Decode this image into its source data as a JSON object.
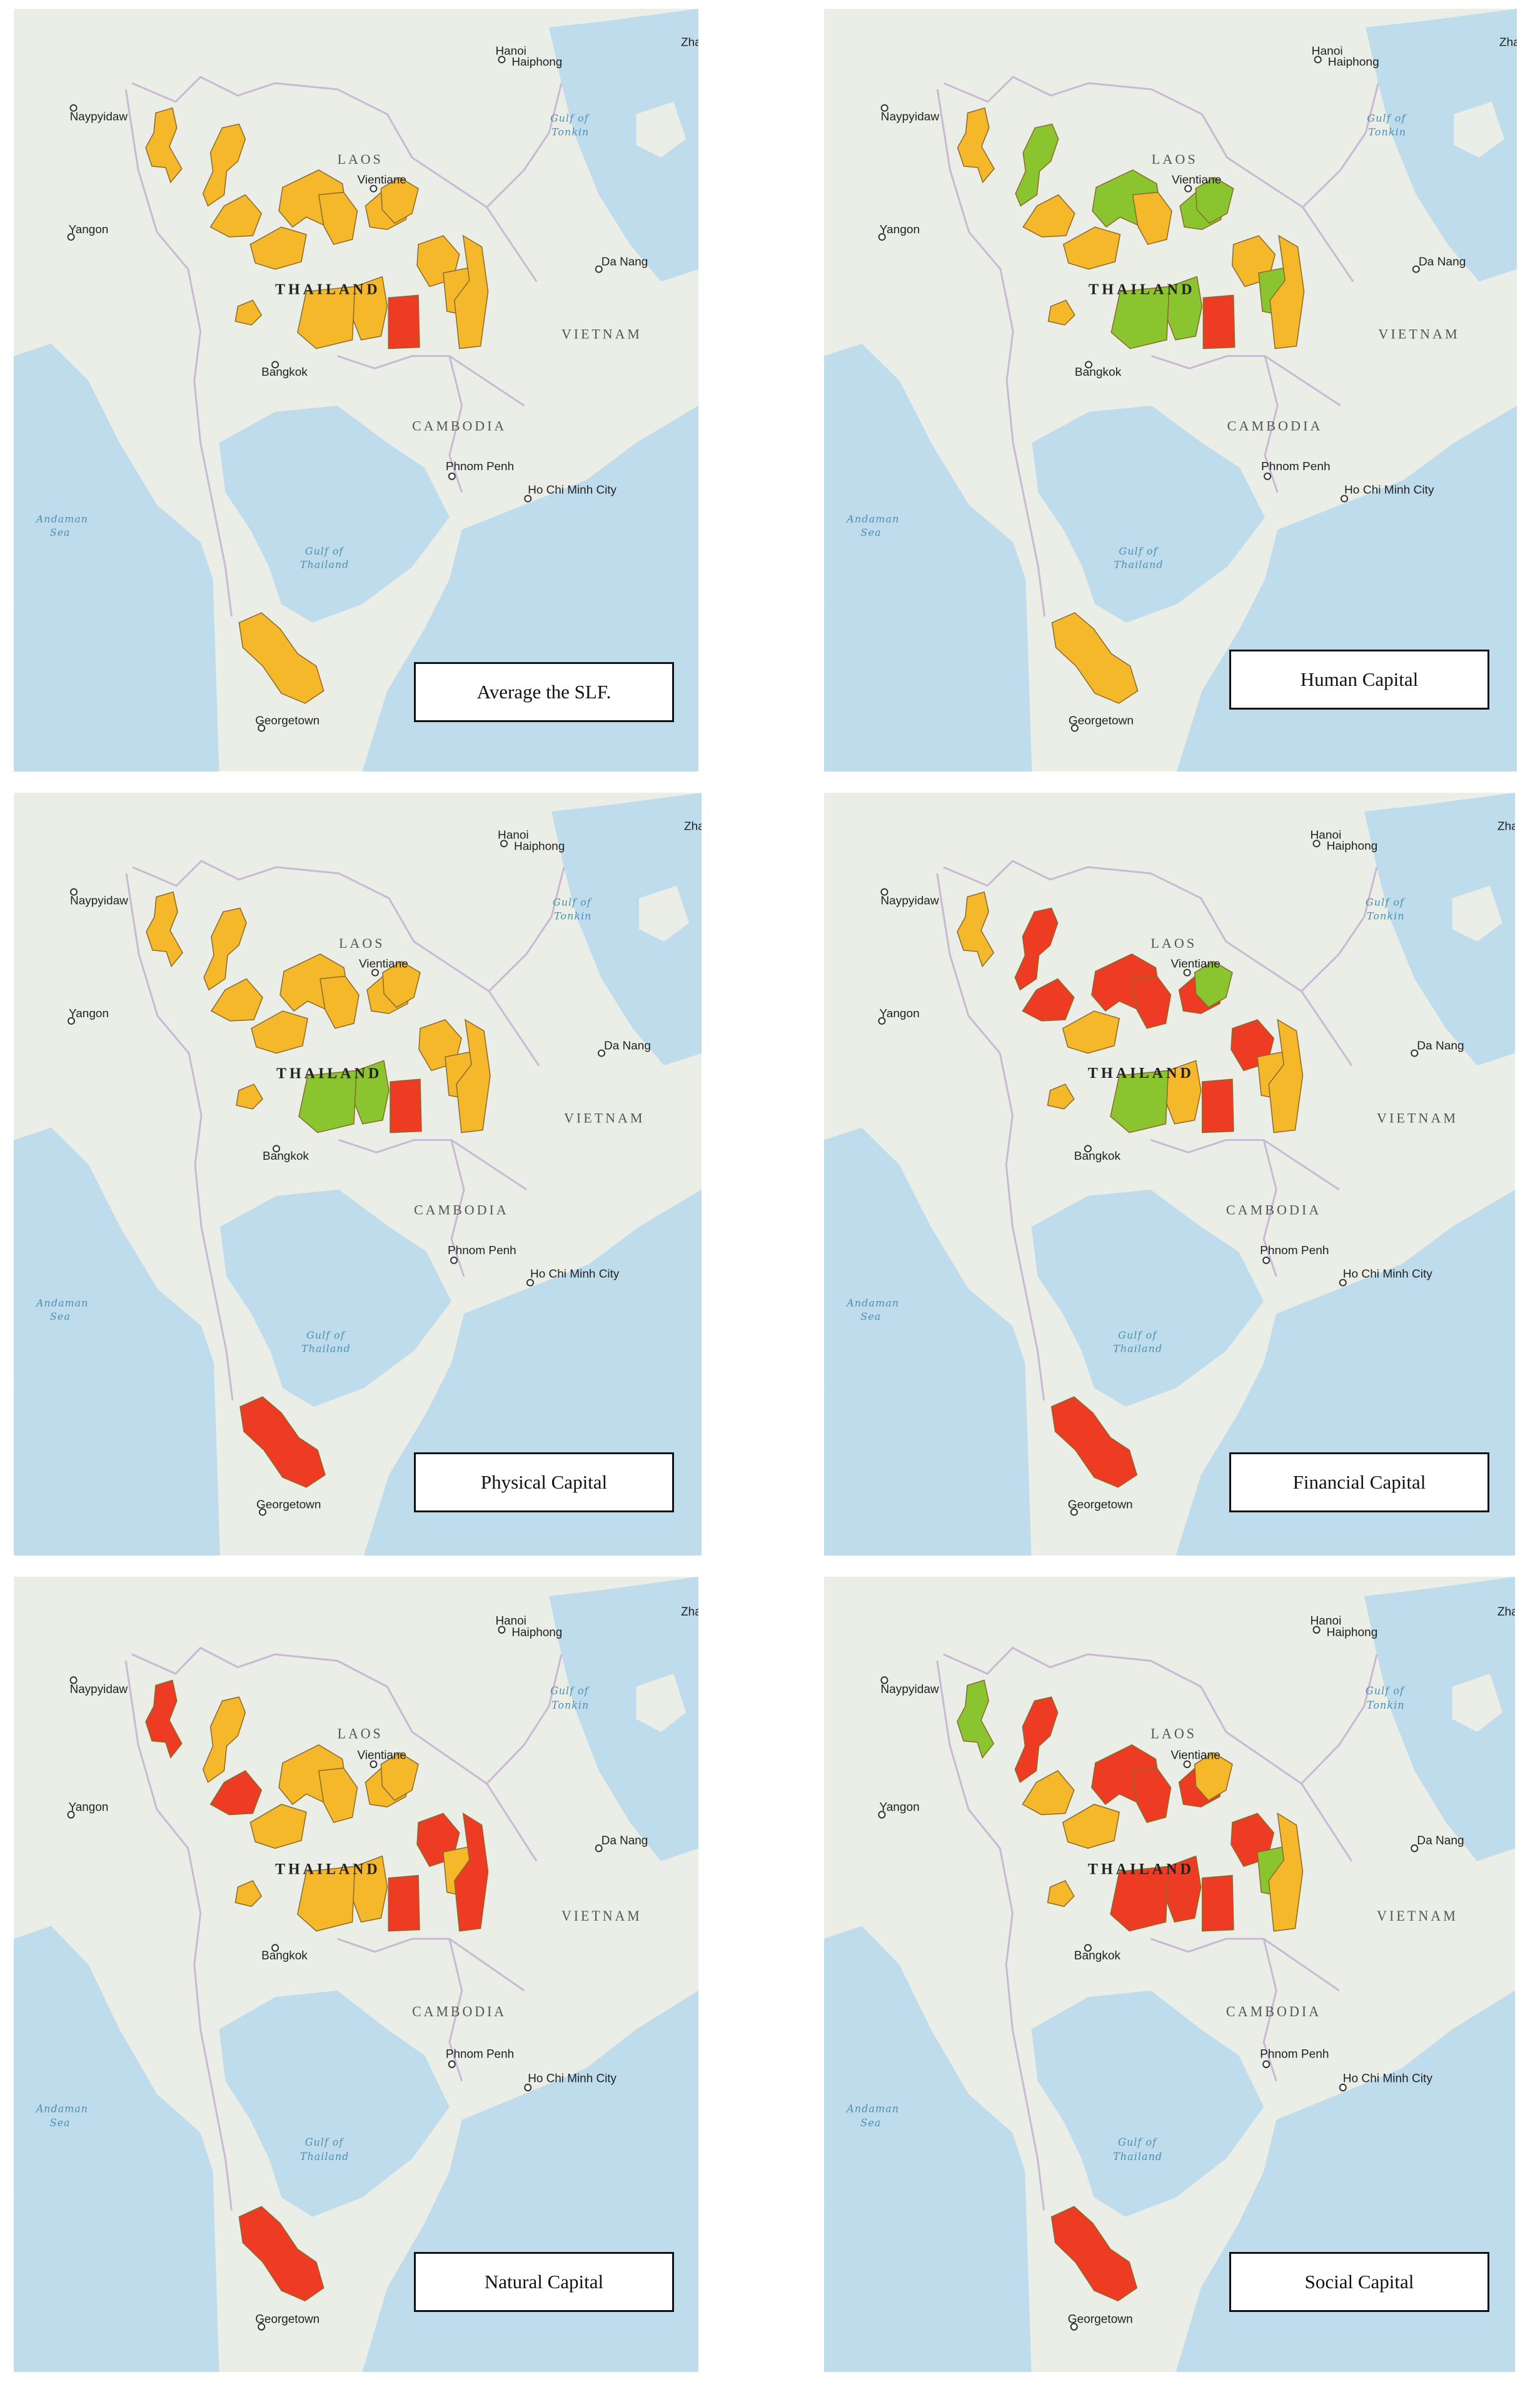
{
  "colors": {
    "high": "#f5b82a",
    "medium": "#8ac52f",
    "low": "#ee3b24",
    "land": "#eaeee6",
    "water": "#bfdcec"
  },
  "labels": {
    "naypyidaw": "Naypyidaw",
    "yangon": "Yangon",
    "laos": "LAOS",
    "vientiane": "Vientiane",
    "thailand": "THAILAND",
    "bangkok": "Bangkok",
    "cambodia": "CAMBODIA",
    "phnom_penh": "Phnom Penh",
    "ho_chi_minh": "Ho Chi Minh City",
    "vietnam": "VIETNAM",
    "da_nang": "Da Nang",
    "hanoi": "Hanoi",
    "haiphong": "Haiphong",
    "gulf_tonkin_1": "Gulf of",
    "gulf_tonkin_2": "Tonkin",
    "andaman_1": "Andaman",
    "andaman_2": "Sea",
    "gulf_thailand_1": "Gulf of",
    "gulf_thailand_2": "Thailand",
    "georgetown": "Georgetown",
    "zha": "Zha"
  },
  "panels": [
    {
      "title": "Average the SLF.",
      "regions": [
        "high",
        "high",
        "high",
        "high",
        "high",
        "high",
        "high",
        "high",
        "low",
        "high",
        "high",
        "high",
        "high",
        "high",
        "high"
      ]
    },
    {
      "title": "Human Capital",
      "regions": [
        "high",
        "medium",
        "medium",
        "high",
        "high",
        "high",
        "medium",
        "medium",
        "low",
        "medium",
        "high",
        "medium",
        "high",
        "medium",
        "high"
      ]
    },
    {
      "title": "Physical Capital",
      "regions": [
        "high",
        "high",
        "high",
        "high",
        "high",
        "high",
        "high",
        "medium",
        "low",
        "high",
        "high",
        "high",
        "high",
        "medium",
        "low"
      ]
    },
    {
      "title": "Financial Capital",
      "regions": [
        "high",
        "low",
        "low",
        "low",
        "high",
        "low",
        "low",
        "high",
        "low",
        "medium",
        "low",
        "high",
        "high",
        "medium",
        "low"
      ]
    },
    {
      "title": "Natural Capital",
      "regions": [
        "low",
        "high",
        "high",
        "low",
        "high",
        "high",
        "high",
        "high",
        "low",
        "high",
        "low",
        "high",
        "low",
        "high",
        "low"
      ]
    },
    {
      "title": "Social Capital",
      "regions": [
        "medium",
        "low",
        "low",
        "high",
        "high",
        "low",
        "low",
        "low",
        "low",
        "high",
        "low",
        "medium",
        "high",
        "low",
        "low"
      ]
    }
  ]
}
